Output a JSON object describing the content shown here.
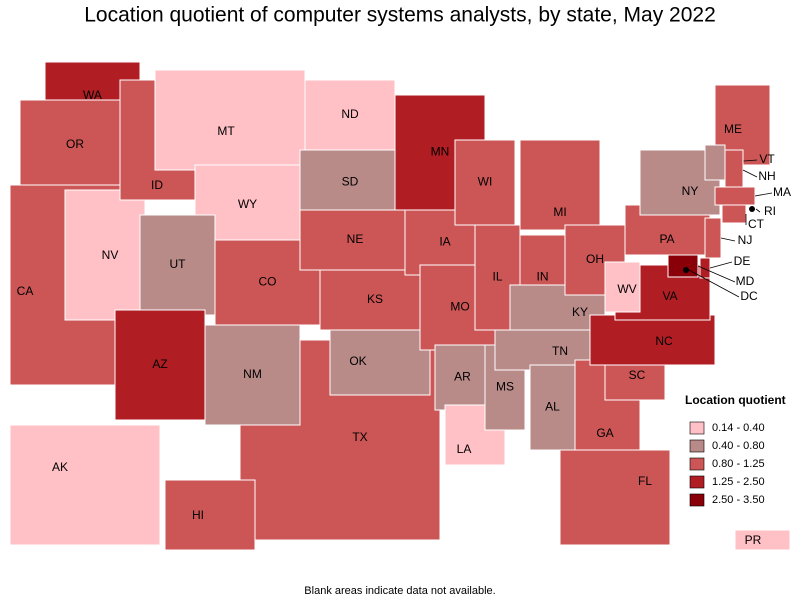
{
  "title": "Location quotient of computer systems analysts, by state, May 2022",
  "legend": {
    "title": "Location quotient",
    "items": [
      {
        "label": "0.14 - 0.40",
        "color": "#ffc0c6"
      },
      {
        "label": "0.40 - 0.80",
        "color": "#b88a88"
      },
      {
        "label": "0.80 - 1.25",
        "color": "#cc5555"
      },
      {
        "label": "1.25 - 2.50",
        "color": "#b01e24"
      },
      {
        "label": "2.50 - 3.50",
        "color": "#8a0008"
      }
    ]
  },
  "states": [
    {
      "label": "TX",
      "class": 2
    },
    {
      "label": "WA",
      "class": 3
    },
    {
      "label": "OR",
      "class": 2
    },
    {
      "label": "CA",
      "class": 2
    },
    {
      "label": "NV",
      "class": 0
    },
    {
      "label": "ID",
      "class": 2
    },
    {
      "label": "MT",
      "class": 0
    },
    {
      "label": "WY",
      "class": 0
    },
    {
      "label": "UT",
      "class": 1
    },
    {
      "label": "AZ",
      "class": 3
    },
    {
      "label": "CO",
      "class": 2
    },
    {
      "label": "NM",
      "class": 1
    },
    {
      "label": "ND",
      "class": 0
    },
    {
      "label": "SD",
      "class": 1
    },
    {
      "label": "NE",
      "class": 2
    },
    {
      "label": "KS",
      "class": 2
    },
    {
      "label": "OK",
      "class": 1
    },
    {
      "label": "MN",
      "class": 3
    },
    {
      "label": "IA",
      "class": 2
    },
    {
      "label": "MO",
      "class": 2
    },
    {
      "label": "AR",
      "class": 1
    },
    {
      "label": "LA",
      "class": 0
    },
    {
      "label": "WI",
      "class": 2
    },
    {
      "label": "IL",
      "class": 2
    },
    {
      "label": "MS",
      "class": 1
    },
    {
      "label": "MI",
      "class": 2
    },
    {
      "label": "IN",
      "class": 2
    },
    {
      "label": "KY",
      "class": 1
    },
    {
      "label": "TN",
      "class": 1
    },
    {
      "label": "AL",
      "class": 1
    },
    {
      "label": "OH",
      "class": 2
    },
    {
      "label": "GA",
      "class": 2
    },
    {
      "label": "FL",
      "class": 2
    },
    {
      "label": "SC",
      "class": 2
    },
    {
      "label": "NC",
      "class": 3
    },
    {
      "label": "VA",
      "class": 3
    },
    {
      "label": "WV",
      "class": 0
    },
    {
      "label": "PA",
      "class": 2
    },
    {
      "label": "NY",
      "class": 1
    },
    {
      "label": "ME",
      "class": 2
    },
    {
      "label": "VT",
      "class": 1
    },
    {
      "label": "NH",
      "class": 2
    },
    {
      "label": "MA",
      "class": 2
    },
    {
      "label": "RI",
      "class": 2
    },
    {
      "label": "CT",
      "class": 2
    },
    {
      "label": "NJ",
      "class": 2
    },
    {
      "label": "DE",
      "class": 3
    },
    {
      "label": "MD",
      "class": 4
    },
    {
      "label": "DC",
      "class": 4
    },
    {
      "label": "AK",
      "class": 0
    },
    {
      "label": "HI",
      "class": 2
    },
    {
      "label": "PR",
      "class": 0
    }
  ],
  "footnote": "Blank areas indicate data not available."
}
